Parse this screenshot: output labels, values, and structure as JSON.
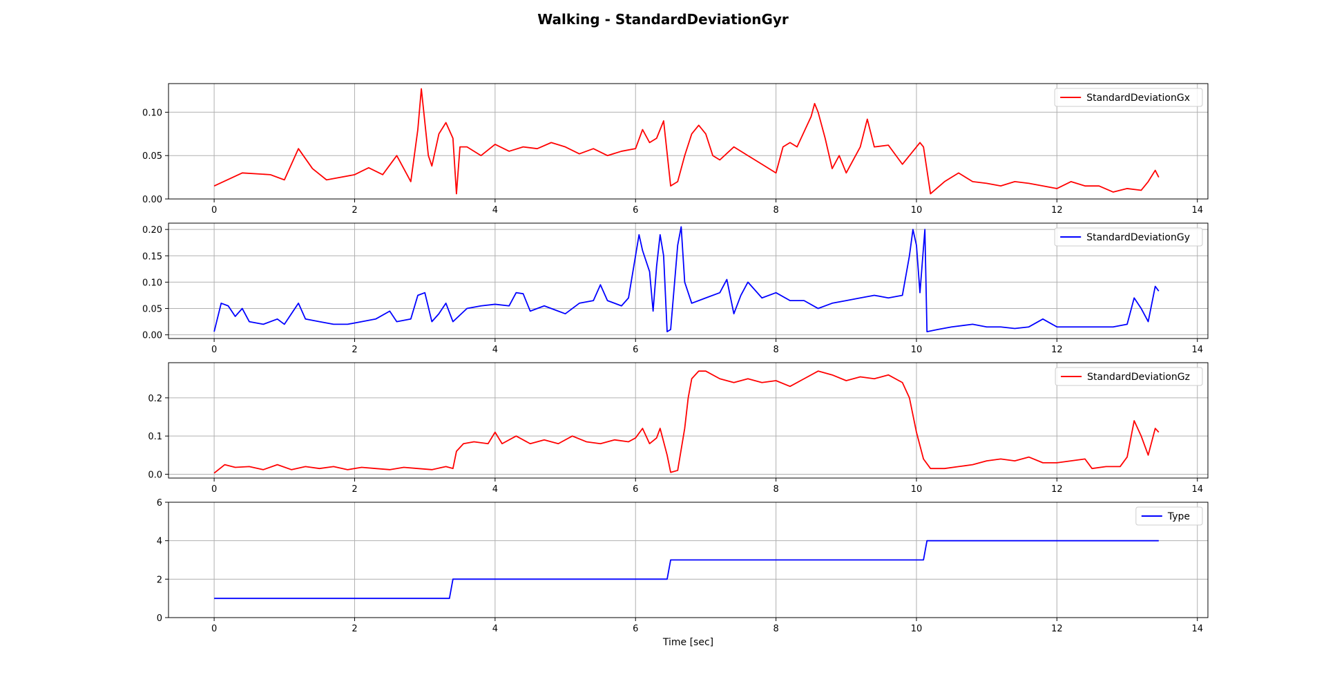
{
  "title": "Walking - StandardDeviationGyr",
  "chart_data": [
    {
      "type": "line",
      "series": [
        {
          "name": "StandardDeviationGx",
          "color": "#ff0000"
        }
      ],
      "xlim": [
        -0.65,
        14.15
      ],
      "ylim": [
        0,
        0.133
      ],
      "xticks": [
        0,
        2,
        4,
        6,
        8,
        10,
        12,
        14
      ],
      "yticks": [
        0.0,
        0.05,
        0.1
      ],
      "ytick_labels": [
        "0.00",
        "0.05",
        "0.10"
      ],
      "grid": true,
      "legend": "upper right",
      "x_end": 13.45,
      "points": [
        [
          0,
          0.015
        ],
        [
          0.4,
          0.03
        ],
        [
          0.8,
          0.028
        ],
        [
          1.0,
          0.022
        ],
        [
          1.2,
          0.058
        ],
        [
          1.4,
          0.035
        ],
        [
          1.6,
          0.022
        ],
        [
          2.0,
          0.028
        ],
        [
          2.2,
          0.036
        ],
        [
          2.4,
          0.028
        ],
        [
          2.6,
          0.05
        ],
        [
          2.8,
          0.02
        ],
        [
          2.9,
          0.08
        ],
        [
          2.95,
          0.127
        ],
        [
          3.05,
          0.05
        ],
        [
          3.1,
          0.038
        ],
        [
          3.2,
          0.075
        ],
        [
          3.3,
          0.088
        ],
        [
          3.4,
          0.07
        ],
        [
          3.45,
          0.006
        ],
        [
          3.5,
          0.06
        ],
        [
          3.6,
          0.06
        ],
        [
          3.8,
          0.05
        ],
        [
          4.0,
          0.063
        ],
        [
          4.2,
          0.055
        ],
        [
          4.4,
          0.06
        ],
        [
          4.6,
          0.058
        ],
        [
          4.8,
          0.065
        ],
        [
          5.0,
          0.06
        ],
        [
          5.2,
          0.052
        ],
        [
          5.4,
          0.058
        ],
        [
          5.6,
          0.05
        ],
        [
          5.8,
          0.055
        ],
        [
          6.0,
          0.058
        ],
        [
          6.1,
          0.08
        ],
        [
          6.2,
          0.065
        ],
        [
          6.3,
          0.07
        ],
        [
          6.4,
          0.09
        ],
        [
          6.5,
          0.015
        ],
        [
          6.6,
          0.02
        ],
        [
          6.7,
          0.05
        ],
        [
          6.8,
          0.075
        ],
        [
          6.9,
          0.085
        ],
        [
          7.0,
          0.075
        ],
        [
          7.1,
          0.05
        ],
        [
          7.2,
          0.045
        ],
        [
          7.4,
          0.06
        ],
        [
          7.6,
          0.05
        ],
        [
          7.8,
          0.04
        ],
        [
          8.0,
          0.03
        ],
        [
          8.1,
          0.06
        ],
        [
          8.2,
          0.065
        ],
        [
          8.3,
          0.06
        ],
        [
          8.5,
          0.095
        ],
        [
          8.55,
          0.11
        ],
        [
          8.6,
          0.1
        ],
        [
          8.7,
          0.07
        ],
        [
          8.8,
          0.035
        ],
        [
          8.9,
          0.05
        ],
        [
          9.0,
          0.03
        ],
        [
          9.2,
          0.06
        ],
        [
          9.3,
          0.092
        ],
        [
          9.4,
          0.06
        ],
        [
          9.6,
          0.062
        ],
        [
          9.8,
          0.04
        ],
        [
          10.0,
          0.06
        ],
        [
          10.05,
          0.065
        ],
        [
          10.1,
          0.06
        ],
        [
          10.2,
          0.006
        ],
        [
          10.4,
          0.02
        ],
        [
          10.6,
          0.03
        ],
        [
          10.8,
          0.02
        ],
        [
          11.0,
          0.018
        ],
        [
          11.2,
          0.015
        ],
        [
          11.4,
          0.02
        ],
        [
          11.6,
          0.018
        ],
        [
          11.8,
          0.015
        ],
        [
          12.0,
          0.012
        ],
        [
          12.2,
          0.02
        ],
        [
          12.4,
          0.015
        ],
        [
          12.6,
          0.015
        ],
        [
          12.8,
          0.008
        ],
        [
          13.0,
          0.012
        ],
        [
          13.2,
          0.01
        ],
        [
          13.3,
          0.02
        ],
        [
          13.4,
          0.033
        ],
        [
          13.45,
          0.025
        ]
      ]
    },
    {
      "type": "line",
      "series": [
        {
          "name": "StandardDeviationGy",
          "color": "#0000ff"
        }
      ],
      "xlim": [
        -0.65,
        14.15
      ],
      "ylim": [
        -0.007,
        0.212
      ],
      "xticks": [
        0,
        2,
        4,
        6,
        8,
        10,
        12,
        14
      ],
      "yticks": [
        0.0,
        0.05,
        0.1,
        0.15,
        0.2
      ],
      "ytick_labels": [
        "0.00",
        "0.05",
        "0.10",
        "0.15",
        "0.20"
      ],
      "grid": true,
      "legend": "upper right",
      "x_end": 13.45,
      "points": [
        [
          0,
          0.006
        ],
        [
          0.1,
          0.06
        ],
        [
          0.2,
          0.055
        ],
        [
          0.3,
          0.035
        ],
        [
          0.4,
          0.05
        ],
        [
          0.5,
          0.025
        ],
        [
          0.7,
          0.02
        ],
        [
          0.9,
          0.03
        ],
        [
          1.0,
          0.02
        ],
        [
          1.1,
          0.04
        ],
        [
          1.2,
          0.06
        ],
        [
          1.3,
          0.03
        ],
        [
          1.5,
          0.025
        ],
        [
          1.7,
          0.02
        ],
        [
          1.9,
          0.02
        ],
        [
          2.1,
          0.025
        ],
        [
          2.3,
          0.03
        ],
        [
          2.5,
          0.045
        ],
        [
          2.6,
          0.025
        ],
        [
          2.8,
          0.03
        ],
        [
          2.9,
          0.075
        ],
        [
          3.0,
          0.08
        ],
        [
          3.1,
          0.025
        ],
        [
          3.2,
          0.04
        ],
        [
          3.3,
          0.06
        ],
        [
          3.4,
          0.025
        ],
        [
          3.6,
          0.05
        ],
        [
          3.8,
          0.055
        ],
        [
          4.0,
          0.058
        ],
        [
          4.2,
          0.055
        ],
        [
          4.3,
          0.08
        ],
        [
          4.4,
          0.078
        ],
        [
          4.5,
          0.045
        ],
        [
          4.7,
          0.055
        ],
        [
          4.9,
          0.045
        ],
        [
          5.0,
          0.04
        ],
        [
          5.2,
          0.06
        ],
        [
          5.4,
          0.065
        ],
        [
          5.5,
          0.095
        ],
        [
          5.6,
          0.065
        ],
        [
          5.8,
          0.055
        ],
        [
          5.9,
          0.07
        ],
        [
          6.0,
          0.15
        ],
        [
          6.05,
          0.19
        ],
        [
          6.1,
          0.16
        ],
        [
          6.2,
          0.12
        ],
        [
          6.25,
          0.045
        ],
        [
          6.3,
          0.13
        ],
        [
          6.35,
          0.19
        ],
        [
          6.4,
          0.15
        ],
        [
          6.45,
          0.006
        ],
        [
          6.5,
          0.01
        ],
        [
          6.6,
          0.17
        ],
        [
          6.65,
          0.205
        ],
        [
          6.7,
          0.1
        ],
        [
          6.8,
          0.06
        ],
        [
          7.0,
          0.07
        ],
        [
          7.2,
          0.08
        ],
        [
          7.3,
          0.105
        ],
        [
          7.4,
          0.04
        ],
        [
          7.5,
          0.075
        ],
        [
          7.6,
          0.1
        ],
        [
          7.8,
          0.07
        ],
        [
          8.0,
          0.08
        ],
        [
          8.2,
          0.065
        ],
        [
          8.4,
          0.065
        ],
        [
          8.6,
          0.05
        ],
        [
          8.8,
          0.06
        ],
        [
          9.0,
          0.065
        ],
        [
          9.2,
          0.07
        ],
        [
          9.4,
          0.075
        ],
        [
          9.6,
          0.07
        ],
        [
          9.8,
          0.075
        ],
        [
          9.9,
          0.15
        ],
        [
          9.95,
          0.2
        ],
        [
          10.0,
          0.17
        ],
        [
          10.05,
          0.08
        ],
        [
          10.12,
          0.2
        ],
        [
          10.15,
          0.006
        ],
        [
          10.3,
          0.01
        ],
        [
          10.5,
          0.015
        ],
        [
          10.8,
          0.02
        ],
        [
          11.0,
          0.015
        ],
        [
          11.2,
          0.015
        ],
        [
          11.4,
          0.012
        ],
        [
          11.6,
          0.015
        ],
        [
          11.8,
          0.03
        ],
        [
          12.0,
          0.015
        ],
        [
          12.2,
          0.015
        ],
        [
          12.5,
          0.015
        ],
        [
          12.8,
          0.015
        ],
        [
          13.0,
          0.02
        ],
        [
          13.1,
          0.07
        ],
        [
          13.2,
          0.05
        ],
        [
          13.3,
          0.025
        ],
        [
          13.4,
          0.092
        ],
        [
          13.45,
          0.083
        ]
      ]
    },
    {
      "type": "line",
      "series": [
        {
          "name": "StandardDeviationGz",
          "color": "#ff0000"
        }
      ],
      "xlim": [
        -0.65,
        14.15
      ],
      "ylim": [
        -0.01,
        0.292
      ],
      "xticks": [
        0,
        2,
        4,
        6,
        8,
        10,
        12,
        14
      ],
      "yticks": [
        0.0,
        0.1,
        0.2
      ],
      "ytick_labels": [
        "0.0",
        "0.1",
        "0.2"
      ],
      "grid": true,
      "legend": "upper right",
      "x_end": 13.45,
      "points": [
        [
          0,
          0.003
        ],
        [
          0.15,
          0.025
        ],
        [
          0.3,
          0.018
        ],
        [
          0.5,
          0.02
        ],
        [
          0.7,
          0.012
        ],
        [
          0.9,
          0.025
        ],
        [
          1.1,
          0.012
        ],
        [
          1.3,
          0.02
        ],
        [
          1.5,
          0.015
        ],
        [
          1.7,
          0.02
        ],
        [
          1.9,
          0.012
        ],
        [
          2.1,
          0.018
        ],
        [
          2.3,
          0.015
        ],
        [
          2.5,
          0.012
        ],
        [
          2.7,
          0.018
        ],
        [
          2.9,
          0.015
        ],
        [
          3.1,
          0.012
        ],
        [
          3.3,
          0.02
        ],
        [
          3.4,
          0.015
        ],
        [
          3.45,
          0.06
        ],
        [
          3.55,
          0.08
        ],
        [
          3.7,
          0.085
        ],
        [
          3.9,
          0.08
        ],
        [
          4.0,
          0.11
        ],
        [
          4.1,
          0.08
        ],
        [
          4.3,
          0.1
        ],
        [
          4.5,
          0.08
        ],
        [
          4.7,
          0.09
        ],
        [
          4.9,
          0.08
        ],
        [
          5.1,
          0.1
        ],
        [
          5.3,
          0.085
        ],
        [
          5.5,
          0.08
        ],
        [
          5.7,
          0.09
        ],
        [
          5.9,
          0.085
        ],
        [
          6.0,
          0.095
        ],
        [
          6.1,
          0.12
        ],
        [
          6.2,
          0.08
        ],
        [
          6.3,
          0.095
        ],
        [
          6.35,
          0.12
        ],
        [
          6.45,
          0.05
        ],
        [
          6.5,
          0.005
        ],
        [
          6.6,
          0.01
        ],
        [
          6.7,
          0.12
        ],
        [
          6.75,
          0.2
        ],
        [
          6.8,
          0.25
        ],
        [
          6.9,
          0.27
        ],
        [
          7.0,
          0.27
        ],
        [
          7.2,
          0.25
        ],
        [
          7.4,
          0.24
        ],
        [
          7.6,
          0.25
        ],
        [
          7.8,
          0.24
        ],
        [
          8.0,
          0.245
        ],
        [
          8.2,
          0.23
        ],
        [
          8.4,
          0.25
        ],
        [
          8.6,
          0.27
        ],
        [
          8.8,
          0.26
        ],
        [
          9.0,
          0.245
        ],
        [
          9.2,
          0.255
        ],
        [
          9.4,
          0.25
        ],
        [
          9.6,
          0.26
        ],
        [
          9.8,
          0.24
        ],
        [
          9.9,
          0.2
        ],
        [
          10.0,
          0.11
        ],
        [
          10.1,
          0.04
        ],
        [
          10.2,
          0.015
        ],
        [
          10.4,
          0.015
        ],
        [
          10.6,
          0.02
        ],
        [
          10.8,
          0.025
        ],
        [
          11.0,
          0.035
        ],
        [
          11.2,
          0.04
        ],
        [
          11.4,
          0.035
        ],
        [
          11.6,
          0.045
        ],
        [
          11.8,
          0.03
        ],
        [
          12.0,
          0.03
        ],
        [
          12.2,
          0.035
        ],
        [
          12.4,
          0.04
        ],
        [
          12.5,
          0.015
        ],
        [
          12.7,
          0.02
        ],
        [
          12.9,
          0.02
        ],
        [
          13.0,
          0.045
        ],
        [
          13.1,
          0.14
        ],
        [
          13.2,
          0.1
        ],
        [
          13.3,
          0.05
        ],
        [
          13.4,
          0.12
        ],
        [
          13.45,
          0.11
        ]
      ]
    },
    {
      "type": "line",
      "series": [
        {
          "name": "Type",
          "color": "#0000ff"
        }
      ],
      "xlim": [
        -0.65,
        14.15
      ],
      "ylim": [
        0,
        6
      ],
      "xticks": [
        0,
        2,
        4,
        6,
        8,
        10,
        12,
        14
      ],
      "yticks": [
        0,
        2,
        4,
        6
      ],
      "ytick_labels": [
        "0",
        "2",
        "4",
        "6"
      ],
      "grid": true,
      "legend": "upper right",
      "xlabel": "Time [sec]",
      "x_end": 13.45,
      "points": [
        [
          0,
          1
        ],
        [
          3.35,
          1
        ],
        [
          3.4,
          2
        ],
        [
          6.45,
          2
        ],
        [
          6.5,
          3
        ],
        [
          10.1,
          3
        ],
        [
          10.15,
          4
        ],
        [
          13.45,
          4
        ]
      ]
    }
  ]
}
